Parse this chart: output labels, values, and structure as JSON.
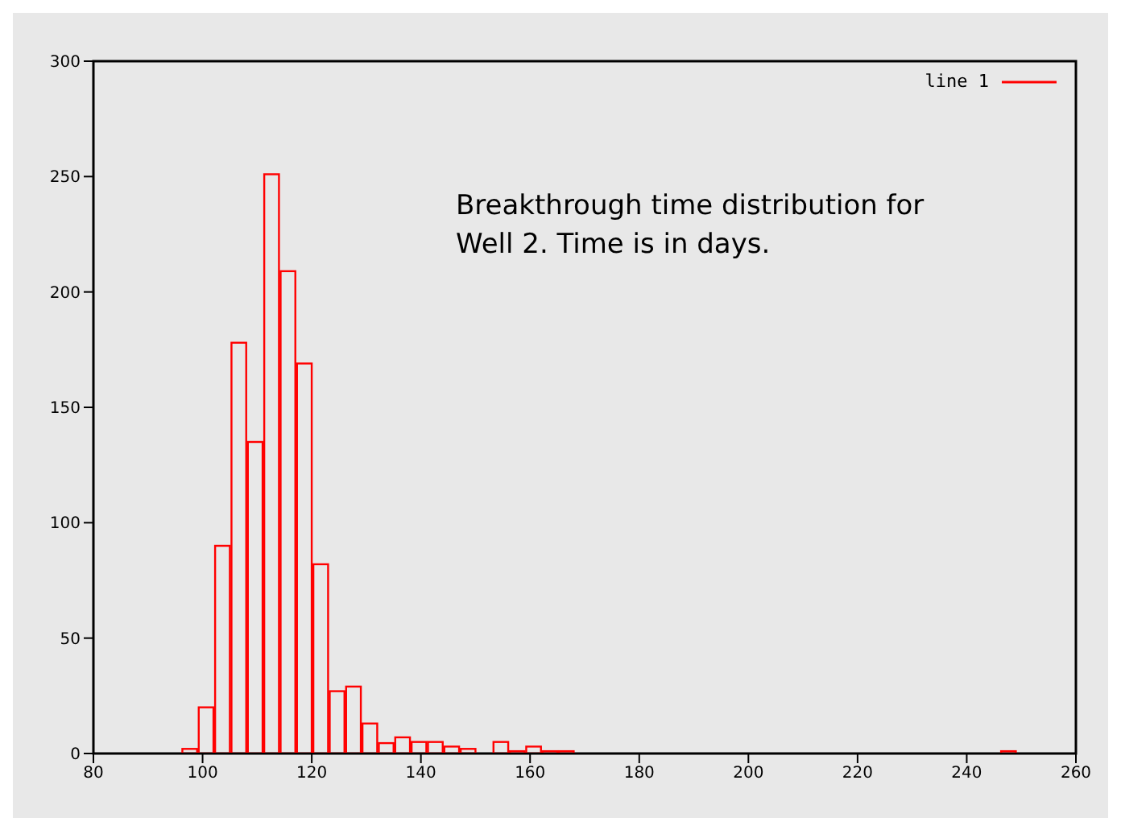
{
  "chart_data": {
    "type": "histogram",
    "bins": [
      96,
      99,
      102,
      105,
      108,
      111,
      114,
      117,
      120,
      123,
      126,
      129,
      132,
      135,
      138,
      141,
      144,
      147,
      150,
      153,
      156,
      159,
      162,
      165,
      168,
      171,
      174,
      177,
      180,
      183,
      186,
      189,
      192,
      195,
      198,
      201,
      204,
      207,
      210,
      213,
      216,
      219,
      222,
      225,
      228,
      231,
      234,
      237,
      240,
      243,
      246,
      249
    ],
    "series": [
      {
        "name": "line 1",
        "color": "#ff0000",
        "values": [
          2,
          20,
          90,
          178,
          135,
          251,
          209,
          169,
          82,
          27,
          29,
          13,
          4.5,
          7,
          5,
          5,
          3,
          2,
          0,
          5,
          1,
          3,
          1,
          1,
          0,
          0,
          0,
          0,
          0,
          0,
          0,
          0,
          0,
          0,
          0,
          0,
          0,
          0,
          0,
          0,
          0,
          0,
          0,
          0,
          0,
          0,
          0,
          0,
          0,
          0,
          1
        ]
      }
    ],
    "xlim": [
      80,
      260
    ],
    "xticks": [
      80,
      100,
      120,
      140,
      160,
      180,
      200,
      220,
      240,
      260
    ],
    "ylim": [
      0,
      300
    ],
    "yticks": [
      0,
      50,
      100,
      150,
      200,
      250,
      300
    ],
    "legend": "top right",
    "annotations": [
      "Breakthrough time distribution for Well 2. Time is in days."
    ]
  }
}
